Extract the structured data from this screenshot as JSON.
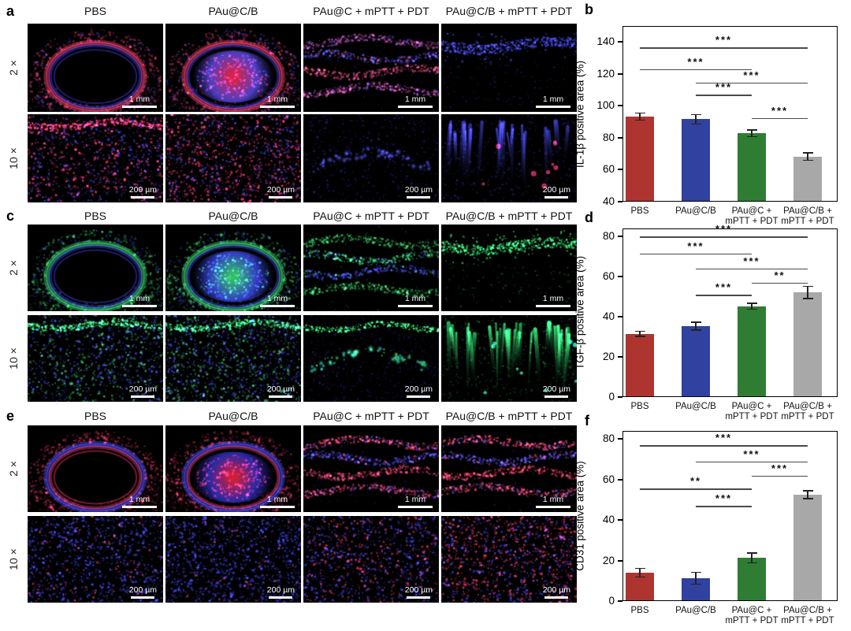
{
  "image_panels": [
    {
      "letter": "a",
      "column_titles": [
        "PBS",
        "PAu@C/B",
        "PAu@C + mPTT + PDT",
        "PAu@C/B + mPTT + PDT"
      ],
      "rows": [
        {
          "magnification": "2 ×",
          "scale_label": "1 mm",
          "cells": [
            {
              "pattern": "dome",
              "hollow": true,
              "colors": [
                "#e23a60",
                "#3b3bd8"
              ],
              "outer": "#d83a66",
              "seed": 11
            },
            {
              "pattern": "dome",
              "hollow": false,
              "colors": [
                "#e23a60",
                "#3b3bd8"
              ],
              "core": "#5a4ae0",
              "blob": "#ff2a50",
              "outer": "#d83a66",
              "seed": 22
            },
            {
              "pattern": "layers",
              "colors": [
                "#b84a9a",
                "#4444d0",
                "#d84a70"
              ],
              "seed": 33
            },
            {
              "pattern": "thinband",
              "colors": [
                "#4646e6"
              ],
              "seed": 44
            }
          ]
        },
        {
          "magnification": "10 ×",
          "scale_label": "200 µm",
          "cells": [
            {
              "pattern": "speckle",
              "colors": [
                "#e0356a",
                "#3d3dd2"
              ],
              "ratio": 0.5,
              "density": 950,
              "topband": "#ff3a6e",
              "seed": 55
            },
            {
              "pattern": "speckle",
              "colors": [
                "#e0356a",
                "#3d3dd2"
              ],
              "ratio": 0.62,
              "density": 1150,
              "seed": 66
            },
            {
              "pattern": "dots",
              "colors": [
                "#5a5af0",
                "#4848e0"
              ],
              "base": "#3434c8",
              "seed": 77
            },
            {
              "pattern": "streaks",
              "colors": [
                "#4a4aee",
                "#3d3dd2"
              ],
              "accent": "#e0356a",
              "count": 24,
              "seed": 88
            }
          ]
        }
      ]
    },
    {
      "letter": "c",
      "column_titles": [
        "PBS",
        "PAu@C/B",
        "PAu@C + mPTT + PDT",
        "PAu@C/B + mPTT + PDT"
      ],
      "rows": [
        {
          "magnification": "2 ×",
          "scale_label": "1 mm",
          "cells": [
            {
              "pattern": "dome",
              "hollow": true,
              "colors": [
                "#35c968",
                "#3b3bd8"
              ],
              "outer": "#35c968",
              "seed": 101
            },
            {
              "pattern": "dome",
              "hollow": false,
              "colors": [
                "#35c968",
                "#3b3bd8"
              ],
              "core": "#3a46e0",
              "blob": "#3fe07a",
              "outer": "#35c968",
              "seed": 102
            },
            {
              "pattern": "layers",
              "colors": [
                "#2f9e52",
                "#35c968",
                "#3b3bd8"
              ],
              "seed": 103
            },
            {
              "pattern": "thinband",
              "colors": [
                "#3ae874"
              ],
              "seed": 104
            }
          ]
        },
        {
          "magnification": "10 ×",
          "scale_label": "200 µm",
          "cells": [
            {
              "pattern": "speckle",
              "colors": [
                "#36b45e",
                "#3d3dd2"
              ],
              "ratio": 0.45,
              "density": 900,
              "topband": "#3ef07e",
              "seed": 105
            },
            {
              "pattern": "speckle",
              "colors": [
                "#36b45e",
                "#3d3dd2"
              ],
              "ratio": 0.5,
              "density": 1100,
              "topband": "#3ef07e",
              "seed": 106
            },
            {
              "pattern": "dots",
              "colors": [
                "#3ef08a",
                "#3fe8c2"
              ],
              "base": "#2a2ab0",
              "topband": "#3ae874",
              "seed": 107
            },
            {
              "pattern": "streaks",
              "colors": [
                "#3af07c",
                "#2fae5a"
              ],
              "accent": "#3fe8c2",
              "count": 34,
              "seed": 108
            }
          ]
        }
      ]
    },
    {
      "letter": "e",
      "column_titles": [
        "PBS",
        "PAu@C/B",
        "PAu@C + mPTT + PDT",
        "PAu@C/B + mPTT + PDT"
      ],
      "rows": [
        {
          "magnification": "2 ×",
          "scale_label": "1 mm",
          "cells": [
            {
              "pattern": "dome",
              "hollow": true,
              "colors": [
                "#4646e6",
                "#e0355f"
              ],
              "outer": "#e0355f",
              "seed": 201
            },
            {
              "pattern": "dome",
              "hollow": false,
              "colors": [
                "#4646e6",
                "#e0355f"
              ],
              "core": "#3030c0",
              "blob": "#f02545",
              "outer": "#e0355f",
              "seed": 202
            },
            {
              "pattern": "layers",
              "colors": [
                "#e04060",
                "#4646e6",
                "#d04070"
              ],
              "seed": 203
            },
            {
              "pattern": "layers",
              "colors": [
                "#e04060",
                "#5050e8",
                "#e04060"
              ],
              "seed": 204
            }
          ]
        },
        {
          "magnification": "10 ×",
          "scale_label": "200 µm",
          "cells": [
            {
              "pattern": "speckle",
              "colors": [
                "#3d3dd8",
                "#d84060"
              ],
              "ratio": 0.85,
              "density": 1000,
              "seed": 205
            },
            {
              "pattern": "speckle",
              "colors": [
                "#3d3dd8",
                "#d84060"
              ],
              "ratio": 0.95,
              "density": 1100,
              "seed": 206
            },
            {
              "pattern": "speckle",
              "colors": [
                "#3d3dd8",
                "#e0354f"
              ],
              "ratio": 0.68,
              "density": 1000,
              "seed": 207
            },
            {
              "pattern": "speckle",
              "colors": [
                "#e0354f",
                "#3d3dd8"
              ],
              "ratio": 0.55,
              "density": 1200,
              "seed": 208
            }
          ]
        }
      ]
    }
  ],
  "chart_data": [
    {
      "letter": "b",
      "type": "bar",
      "ylabel": "IL-1β positive area (%)",
      "categories": [
        [
          "PBS"
        ],
        [
          "PAu@C/B"
        ],
        [
          "PAu@C +",
          "mPTT + PDT"
        ],
        [
          "PAu@C/B +",
          "mPTT + PDT"
        ]
      ],
      "values": [
        93.2,
        91.6,
        82.8,
        68.3
      ],
      "errors": [
        2.2,
        3.0,
        2.0,
        2.4
      ],
      "bar_colors": [
        "#ae352f",
        "#31419f",
        "#2f7d33",
        "#a8a8a8"
      ],
      "ylim": [
        40,
        150
      ],
      "yticks": [
        40,
        60,
        80,
        100,
        120,
        140
      ],
      "grid": false,
      "significance": [
        {
          "from": 0,
          "to": 3,
          "y": 136.5,
          "label": "***"
        },
        {
          "from": 0,
          "to": 2,
          "y": 123,
          "label": "***"
        },
        {
          "from": 1,
          "to": 3,
          "y": 114.5,
          "label": "***"
        },
        {
          "from": 1,
          "to": 2,
          "y": 107,
          "label": "***"
        },
        {
          "from": 2,
          "to": 3,
          "y": 92.5,
          "label": "***"
        }
      ]
    },
    {
      "letter": "d",
      "type": "bar",
      "ylabel": "TGF-β positive area (%)",
      "categories": [
        [
          "PBS"
        ],
        [
          "PAu@C/B"
        ],
        [
          "PAu@C +",
          "mPTT + PDT"
        ],
        [
          "PAu@C/B +",
          "mPTT + PDT"
        ]
      ],
      "values": [
        31.5,
        35.3,
        45.2,
        52.1
      ],
      "errors": [
        1.3,
        2.0,
        1.5,
        3.0
      ],
      "bar_colors": [
        "#ae352f",
        "#31419f",
        "#2f7d33",
        "#a8a8a8"
      ],
      "ylim": [
        0,
        84
      ],
      "yticks": [
        0,
        20,
        40,
        60,
        80
      ],
      "grid": false,
      "significance": [
        {
          "from": 0,
          "to": 3,
          "y": 80,
          "label": "***"
        },
        {
          "from": 0,
          "to": 2,
          "y": 71.5,
          "label": "***"
        },
        {
          "from": 1,
          "to": 3,
          "y": 64,
          "label": "***"
        },
        {
          "from": 2,
          "to": 3,
          "y": 57,
          "label": "**"
        },
        {
          "from": 1,
          "to": 2,
          "y": 51,
          "label": "***"
        }
      ]
    },
    {
      "letter": "f",
      "type": "bar",
      "ylabel": "CD31 positive area (%)",
      "categories": [
        [
          "PBS"
        ],
        [
          "PAu@C/B"
        ],
        [
          "PAu@C +",
          "mPTT + PDT"
        ],
        [
          "PAu@C/B +",
          "mPTT + PDT"
        ]
      ],
      "values": [
        14.0,
        11.3,
        21.3,
        52.5
      ],
      "errors": [
        2.1,
        2.9,
        2.4,
        1.9
      ],
      "bar_colors": [
        "#ae352f",
        "#31419f",
        "#2f7d33",
        "#a8a8a8"
      ],
      "ylim": [
        0,
        84
      ],
      "yticks": [
        0,
        20,
        40,
        60,
        80
      ],
      "grid": false,
      "significance": [
        {
          "from": 0,
          "to": 3,
          "y": 77,
          "label": "***"
        },
        {
          "from": 1,
          "to": 3,
          "y": 69,
          "label": "***"
        },
        {
          "from": 2,
          "to": 3,
          "y": 62,
          "label": "***"
        },
        {
          "from": 0,
          "to": 2,
          "y": 55.5,
          "label": "**"
        },
        {
          "from": 1,
          "to": 2,
          "y": 47,
          "label": "***"
        }
      ]
    }
  ]
}
